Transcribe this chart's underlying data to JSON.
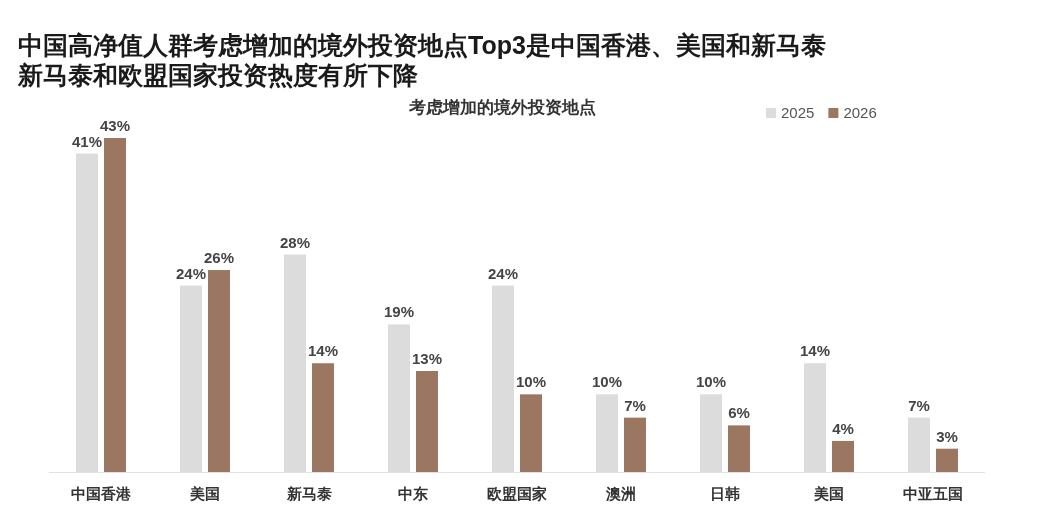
{
  "chart_data": {
    "type": "bar",
    "title": "中国高净值人群考虑增加的境外投资地点Top3是中国香港、美国和新马泰新马泰和欧盟国家投资热度有所下降",
    "subtitle": "考虑增加的境外投资地点",
    "categories": [
      "中国香港",
      "美国",
      "新马泰",
      "中东",
      "欧盟国家",
      "澳洲",
      "日韩",
      "美国",
      "中亚五国"
    ],
    "series": [
      {
        "name": "2025",
        "color": "#dcdcdc",
        "values": [
          41,
          24,
          28,
          19,
          24,
          10,
          10,
          14,
          7
        ],
        "value_labels": [
          "41%",
          "24%",
          "28%",
          "19%",
          "24%",
          "10%",
          "10%",
          "14%",
          "7%"
        ]
      },
      {
        "name": "2026",
        "color": "#9b7660",
        "values": [
          43,
          26,
          14,
          13,
          10,
          7,
          6,
          4,
          3
        ],
        "value_labels": [
          "43%",
          "26%",
          "14%",
          "13%",
          "10%",
          "7%",
          "6%",
          "4%",
          "3%"
        ]
      }
    ],
    "legend": "top right"
  }
}
